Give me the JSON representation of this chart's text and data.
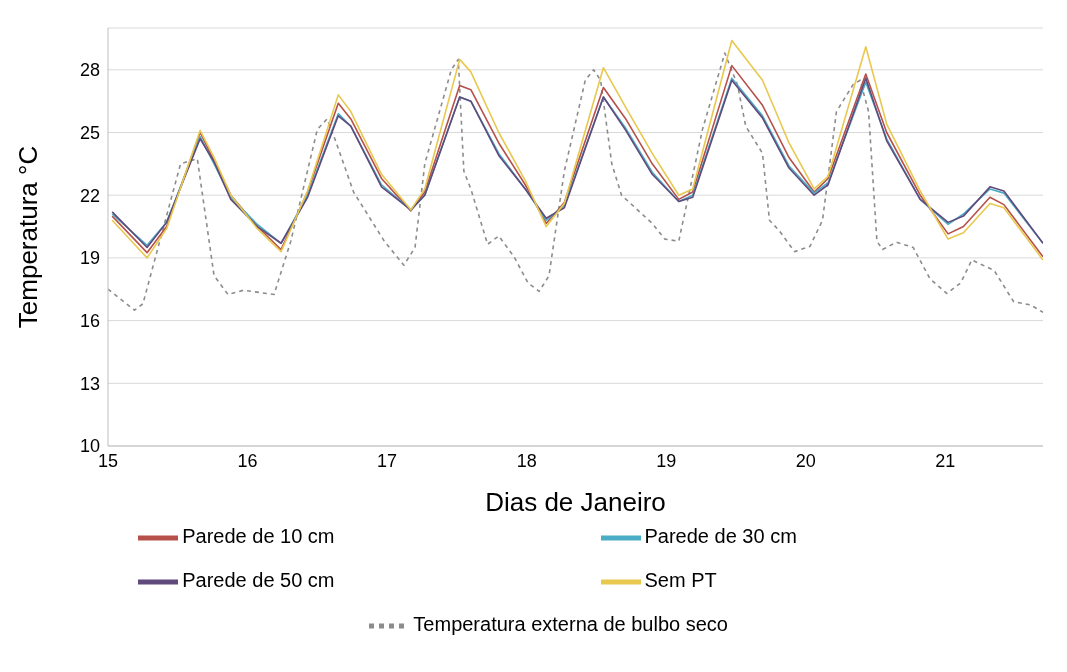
{
  "chart_data": {
    "type": "line",
    "xlabel": "Dias de Janeiro",
    "ylabel": "Temperatura °C",
    "xlim": [
      15,
      21.7
    ],
    "xticks": [
      15,
      16,
      17,
      18,
      19,
      20,
      21
    ],
    "ylim": [
      10,
      30
    ],
    "yticks": [
      10,
      13,
      16,
      19,
      22,
      25,
      28
    ],
    "grid": "y",
    "legend": "bottom",
    "marker": "none",
    "x": [
      15.03,
      15.28,
      15.42,
      15.66,
      15.76,
      15.88,
      16.07,
      16.24,
      16.43,
      16.65,
      16.74,
      16.96,
      17.17,
      17.27,
      17.52,
      17.6,
      17.8,
      17.99,
      18.14,
      18.27,
      18.55,
      18.71,
      18.9,
      19.09,
      19.19,
      19.47,
      19.69,
      19.88,
      20.06,
      20.16,
      20.43,
      20.58,
      20.82,
      21.02,
      21.13,
      21.32,
      21.42,
      21.7
    ],
    "series": [
      {
        "name": "Temperatura externa de bulbo seco",
        "color": "#8c8c8c",
        "line_style": "dashed",
        "x": [
          15.0,
          15.19,
          15.25,
          15.52,
          15.64,
          15.76,
          15.86,
          15.97,
          16.19,
          16.31,
          16.5,
          16.57,
          16.62,
          16.76,
          16.98,
          17.12,
          17.2,
          17.27,
          17.46,
          17.51,
          17.55,
          17.6,
          17.72,
          17.8,
          17.91,
          18.01,
          18.09,
          18.16,
          18.27,
          18.42,
          18.48,
          18.53,
          18.61,
          18.68,
          18.9,
          18.99,
          19.09,
          19.17,
          19.26,
          19.42,
          19.51,
          19.57,
          19.69,
          19.74,
          19.81,
          19.92,
          20.03,
          20.12,
          20.22,
          20.34,
          20.39,
          20.45,
          20.51,
          20.55,
          20.65,
          20.77,
          20.89,
          21.01,
          21.11,
          21.19,
          21.35,
          21.49,
          21.61,
          21.7
        ],
        "values": [
          17.5,
          16.5,
          16.8,
          23.5,
          23.75,
          18.15,
          17.25,
          17.45,
          17.25,
          19.8,
          25.15,
          25.65,
          24.8,
          22.15,
          19.8,
          18.65,
          19.5,
          23.5,
          28,
          28.5,
          23.15,
          22.3,
          19.65,
          20.05,
          19.05,
          17.8,
          17.4,
          18.15,
          23.15,
          27.5,
          28,
          27.5,
          23.5,
          22,
          20.65,
          19.9,
          19.8,
          22.3,
          25.15,
          28.8,
          27.3,
          25.3,
          24,
          20.8,
          20.3,
          19.3,
          19.55,
          20.8,
          26,
          27.3,
          27.5,
          26,
          19.8,
          19.4,
          19.75,
          19.5,
          18,
          17.3,
          17.8,
          18.9,
          18.4,
          16.9,
          16.75,
          16.4
        ]
      },
      {
        "name": "Parede de 10 cm",
        "color": "#b5504a",
        "line_style": "solid",
        "values": [
          21,
          19.25,
          20.5,
          25,
          23.65,
          22,
          20.5,
          19.4,
          22.15,
          26.4,
          25.65,
          22.8,
          21.25,
          22.15,
          27.25,
          27.05,
          24.5,
          22.5,
          20.65,
          21.65,
          27.15,
          25.65,
          23.5,
          21.8,
          22.15,
          28.2,
          26.3,
          23.8,
          22.15,
          22.8,
          27.8,
          25,
          22,
          20.15,
          20.5,
          21.9,
          21.55,
          19.05
        ]
      },
      {
        "name": "Parede de 30 cm",
        "color": "#4bacc6",
        "line_style": "solid",
        "values": [
          21.1,
          19.6,
          20.7,
          24.8,
          23.5,
          21.9,
          20.6,
          19.7,
          22.0,
          25.9,
          25.3,
          22.5,
          21.3,
          22.0,
          26.7,
          26.5,
          24.0,
          22.3,
          20.8,
          21.5,
          26.7,
          25.2,
          23.1,
          21.7,
          22.0,
          27.6,
          25.8,
          23.4,
          22.1,
          22.6,
          27.4,
          24.7,
          21.8,
          20.6,
          21.1,
          22.3,
          22.1,
          19.7
        ]
      },
      {
        "name": "Parede de 50 cm",
        "color": "#604a7b",
        "line_style": "solid",
        "values": [
          21.2,
          19.5,
          20.7,
          24.7,
          23.6,
          21.8,
          20.5,
          19.7,
          21.9,
          25.8,
          25.3,
          22.4,
          21.3,
          22.0,
          26.7,
          26.5,
          23.9,
          22.3,
          20.9,
          21.4,
          26.7,
          25.1,
          23.0,
          21.7,
          21.9,
          27.5,
          25.7,
          23.3,
          22.0,
          22.5,
          27.6,
          24.6,
          21.8,
          20.7,
          21.0,
          22.4,
          22.2,
          19.7
        ]
      },
      {
        "name": "Sem PT",
        "color": "#e8c84e",
        "line_style": "solid",
        "values": [
          20.8,
          19.0,
          20.4,
          25.1,
          23.8,
          22.0,
          20.4,
          19.3,
          22.2,
          26.8,
          26.0,
          23.0,
          21.3,
          22.3,
          28.5,
          27.9,
          25.0,
          22.7,
          20.5,
          21.6,
          28.1,
          26.2,
          24.0,
          22.0,
          22.3,
          29.4,
          27.5,
          24.5,
          22.3,
          22.9,
          29.1,
          25.4,
          22.2,
          19.9,
          20.2,
          21.6,
          21.4,
          18.9
        ]
      }
    ]
  }
}
